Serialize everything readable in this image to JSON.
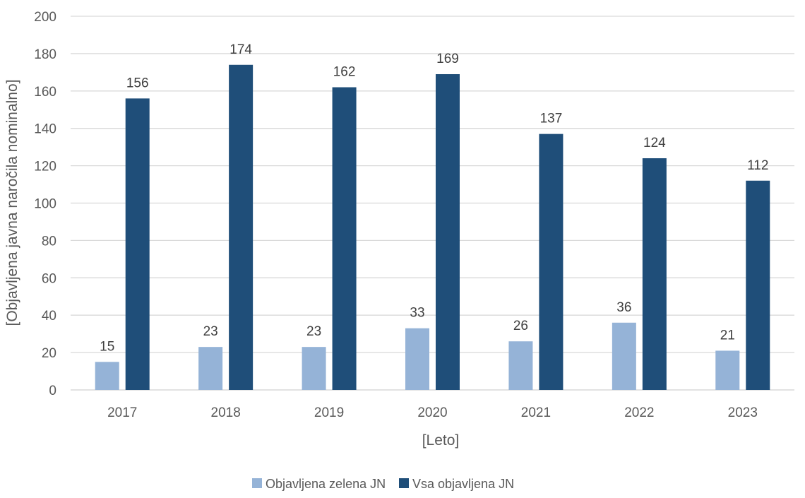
{
  "chart_data": {
    "type": "bar",
    "title": "",
    "xlabel": "[Leto]",
    "ylabel": "[Objavljena javna naročila nominalno]",
    "categories": [
      "2017",
      "2018",
      "2019",
      "2020",
      "2021",
      "2022",
      "2023"
    ],
    "series": [
      {
        "name": "Objavljena zelena JN",
        "values": [
          15,
          23,
          23,
          33,
          26,
          36,
          21
        ],
        "color": "#95b3d7"
      },
      {
        "name": "Vsa objavljena JN",
        "values": [
          156,
          174,
          162,
          169,
          137,
          124,
          112
        ],
        "color": "#1f4e79"
      }
    ],
    "ylim": [
      0,
      200
    ],
    "yticks": [
      0,
      20,
      40,
      60,
      80,
      100,
      120,
      140,
      160,
      180,
      200
    ],
    "grid": true,
    "legend_position": "bottom",
    "data_labels": true
  }
}
